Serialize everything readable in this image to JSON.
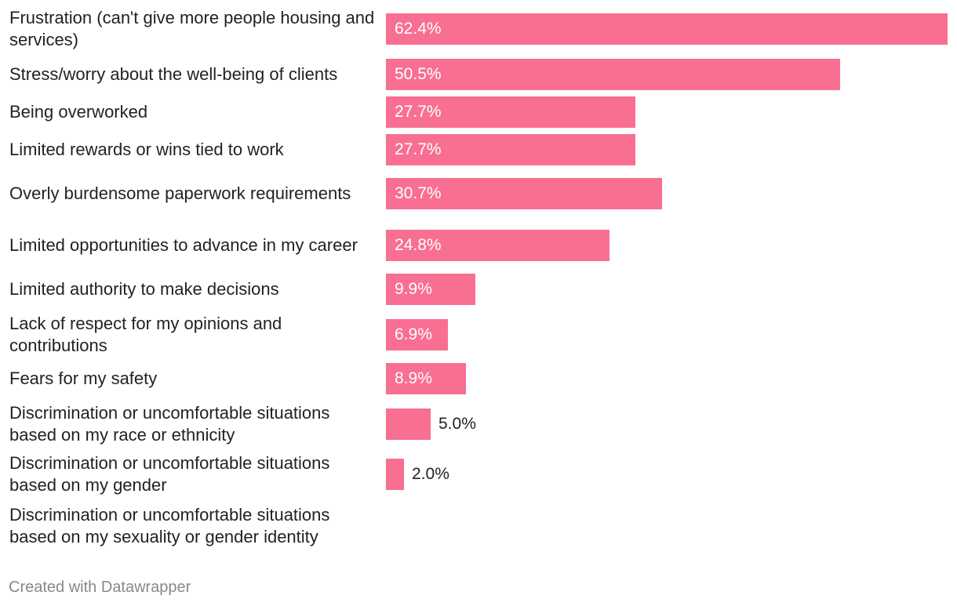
{
  "chart_data": {
    "type": "bar",
    "orientation": "horizontal",
    "categories": [
      "Frustration (can't give more people housing and services)",
      "Stress/worry about the well-being of clients",
      "Being overworked",
      "Limited rewards or wins tied to work",
      "Overly burdensome paperwork requirements",
      "Limited opportunities to advance in my career",
      "Limited authority to make decisions",
      "Lack of respect for my opinions and contributions",
      "Fears for my safety",
      "Discrimination or uncomfortable situations based on my race or ethnicity",
      "Discrimination or uncomfortable situations based on my gender",
      "Discrimination or uncomfortable situations based on my sexuality or gender identity"
    ],
    "values": [
      62.4,
      50.5,
      27.7,
      27.7,
      30.7,
      24.8,
      9.9,
      6.9,
      8.9,
      5.0,
      2.0,
      null
    ],
    "value_labels": [
      "62.4%",
      "50.5%",
      "27.7%",
      "27.7%",
      "30.7%",
      "24.8%",
      "9.9%",
      "6.9%",
      "8.9%",
      "5.0%",
      "2.0%",
      ""
    ],
    "xlim": [
      0,
      62.4
    ],
    "bar_color": "#f86f91",
    "grid": false,
    "title": "",
    "xlabel": "",
    "ylabel": ""
  },
  "footer": {
    "credit": "Created with Datawrapper"
  }
}
